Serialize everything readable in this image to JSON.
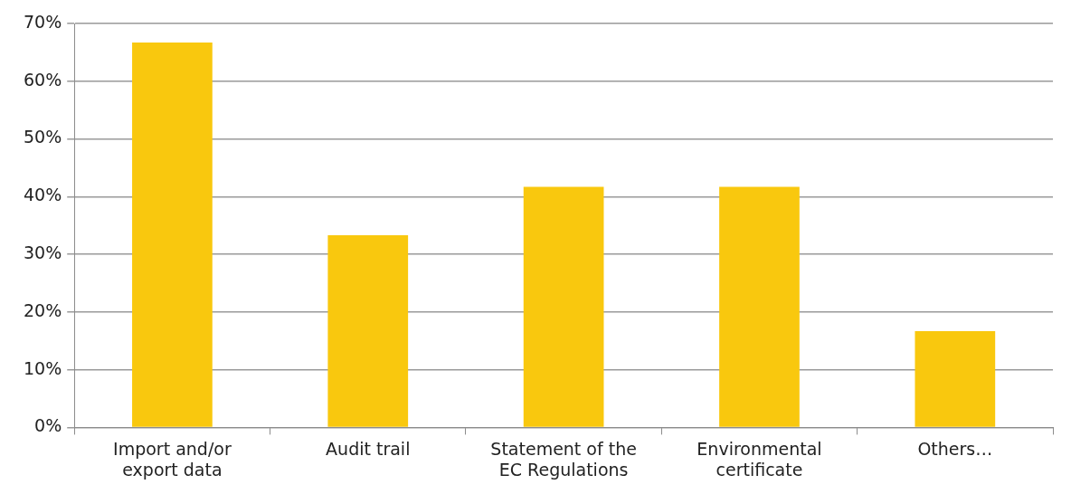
{
  "chart_data": {
    "type": "bar",
    "categories": [
      "Import and/or\nexport data",
      "Audit trail",
      "Statement of the\nEC Regulations",
      "Environmental\ncertificate",
      "Others…"
    ],
    "values": [
      66.7,
      33.3,
      41.7,
      41.7,
      16.7
    ],
    "color": "#f9c80e",
    "ylim": [
      0,
      70
    ],
    "yticks": [
      {
        "value": 0,
        "label": "0%"
      },
      {
        "value": 10,
        "label": "10%"
      },
      {
        "value": 20,
        "label": "20%"
      },
      {
        "value": 30,
        "label": "30%"
      },
      {
        "value": 40,
        "label": "40%"
      },
      {
        "value": 50,
        "label": "50%"
      },
      {
        "value": 60,
        "label": "60%"
      },
      {
        "value": 70,
        "label": "70%"
      }
    ],
    "grid": "y"
  }
}
